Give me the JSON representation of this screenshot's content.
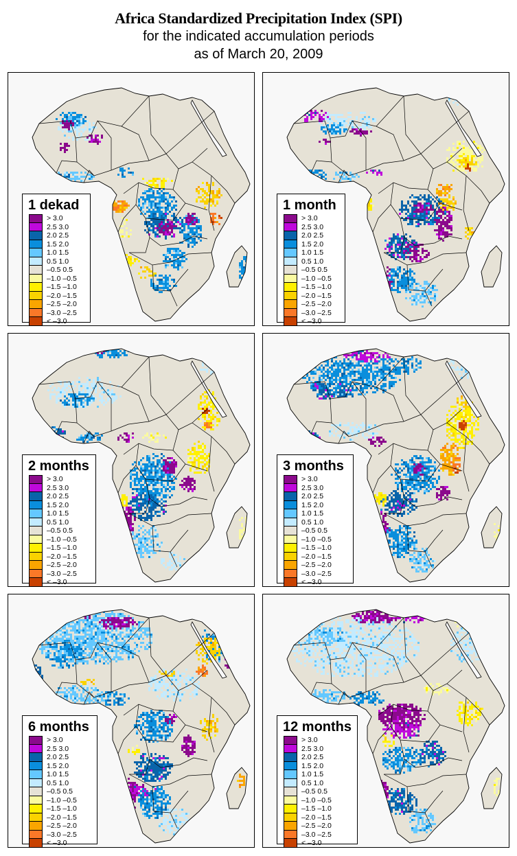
{
  "header": {
    "title": "Africa Standardized Precipitation Index (SPI)",
    "subtitle": "for the indicated accumulation periods",
    "date_line": "as of March 20, 2009"
  },
  "legend": {
    "classes": [
      {
        "label": "> 3.0",
        "color": "#8b0a8c"
      },
      {
        "label": "2.5  3.0",
        "color": "#bf09dc"
      },
      {
        "label": "2.0  2.5",
        "color": "#0a64aa"
      },
      {
        "label": "1.5  2.0",
        "color": "#0a8edc"
      },
      {
        "label": "1.0  1.5",
        "color": "#64c8ff"
      },
      {
        "label": "0.5  1.0",
        "color": "#c3ebff"
      },
      {
        "label": "–0.5  0.5",
        "color": "#e6e2d6"
      },
      {
        "label": "–1.0 –0.5",
        "color": "#fafaa0"
      },
      {
        "label": "–1.5 –1.0",
        "color": "#fff000"
      },
      {
        "label": "–2.0 –1.5",
        "color": "#fad200"
      },
      {
        "label": "–2.5 –2.0",
        "color": "#faa500"
      },
      {
        "label": "–3.0 –2.5",
        "color": "#fa7828"
      },
      {
        "label": "< –3.0",
        "color": "#c84100"
      }
    ]
  },
  "colors": {
    "land_neutral": "#e6e2d6",
    "ocean": "#f8f8f8",
    "border": "#000000"
  },
  "panels": [
    {
      "id": "p1",
      "label": "1 dekad"
    },
    {
      "id": "p2",
      "label": "1 month"
    },
    {
      "id": "p3",
      "label": "2 months"
    },
    {
      "id": "p4",
      "label": "3 months"
    },
    {
      "id": "p5",
      "label": "6 months"
    },
    {
      "id": "p6",
      "label": "12 months"
    }
  ]
}
